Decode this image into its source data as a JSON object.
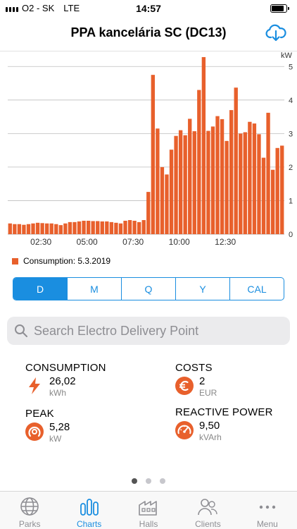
{
  "status": {
    "carrier": "O2 - SK",
    "network": "LTE",
    "time": "14:57",
    "battery_level": 0.85
  },
  "header": {
    "title": "PPA kancelária SC (DC13)",
    "action_icon": "cloud-download-icon"
  },
  "colors": {
    "accent": "#1a8ee0",
    "brand": "#e8602c",
    "grid": "#bdbdbd"
  },
  "chart_data": {
    "type": "bar",
    "unit": "kW",
    "yticks": [
      "0",
      "1",
      "2",
      "3",
      "4",
      "5"
    ],
    "ylim": [
      0,
      5.3
    ],
    "xtick_labels": [
      "02:30",
      "05:00",
      "07:30",
      "10:00",
      "12:30"
    ],
    "xtick_positions": [
      10,
      20,
      30,
      40,
      50
    ],
    "grid": true,
    "legend_position": "bottom-left",
    "series": [
      {
        "name": "Consumption: 5.3.2019",
        "values": [
          0.32,
          0.3,
          0.3,
          0.28,
          0.3,
          0.32,
          0.34,
          0.33,
          0.32,
          0.32,
          0.3,
          0.27,
          0.32,
          0.36,
          0.36,
          0.38,
          0.4,
          0.4,
          0.39,
          0.39,
          0.38,
          0.38,
          0.36,
          0.34,
          0.32,
          0.4,
          0.42,
          0.4,
          0.36,
          0.42,
          1.26,
          4.75,
          3.15,
          2.0,
          1.78,
          2.52,
          2.93,
          3.1,
          2.95,
          3.44,
          3.07,
          4.3,
          5.28,
          3.08,
          3.21,
          3.52,
          3.43,
          2.78,
          3.7,
          4.37,
          3.0,
          3.04,
          3.35,
          3.3,
          2.98,
          2.28,
          3.62,
          1.92,
          2.57,
          2.64
        ]
      }
    ]
  },
  "segments": {
    "items": [
      "D",
      "M",
      "Q",
      "Y",
      "CAL"
    ],
    "active": "D"
  },
  "search": {
    "placeholder": "Search Electro Delivery Point"
  },
  "stats": {
    "consumption": {
      "label": "CONSUMPTION",
      "value": "26,02",
      "unit": "kWh",
      "icon": "lightning-icon"
    },
    "costs": {
      "label": "COSTS",
      "value": "2",
      "unit": "EUR",
      "icon": "euro-icon"
    },
    "peak": {
      "label": "PEAK",
      "value": "5,28",
      "unit": "kW",
      "icon": "peak-gauge-icon"
    },
    "reactive": {
      "label": "REACTIVE POWER",
      "value": "9,50",
      "unit": "kVArh",
      "icon": "speedometer-icon"
    }
  },
  "pager": {
    "count": 3,
    "active": 0
  },
  "tabs": [
    {
      "label": "Parks",
      "icon": "globe-icon",
      "active": false
    },
    {
      "label": "Charts",
      "icon": "bar-chart-icon",
      "active": true
    },
    {
      "label": "Halls",
      "icon": "factory-icon",
      "active": false
    },
    {
      "label": "Clients",
      "icon": "people-icon",
      "active": false
    },
    {
      "label": "Menu",
      "icon": "more-icon",
      "active": false
    }
  ]
}
